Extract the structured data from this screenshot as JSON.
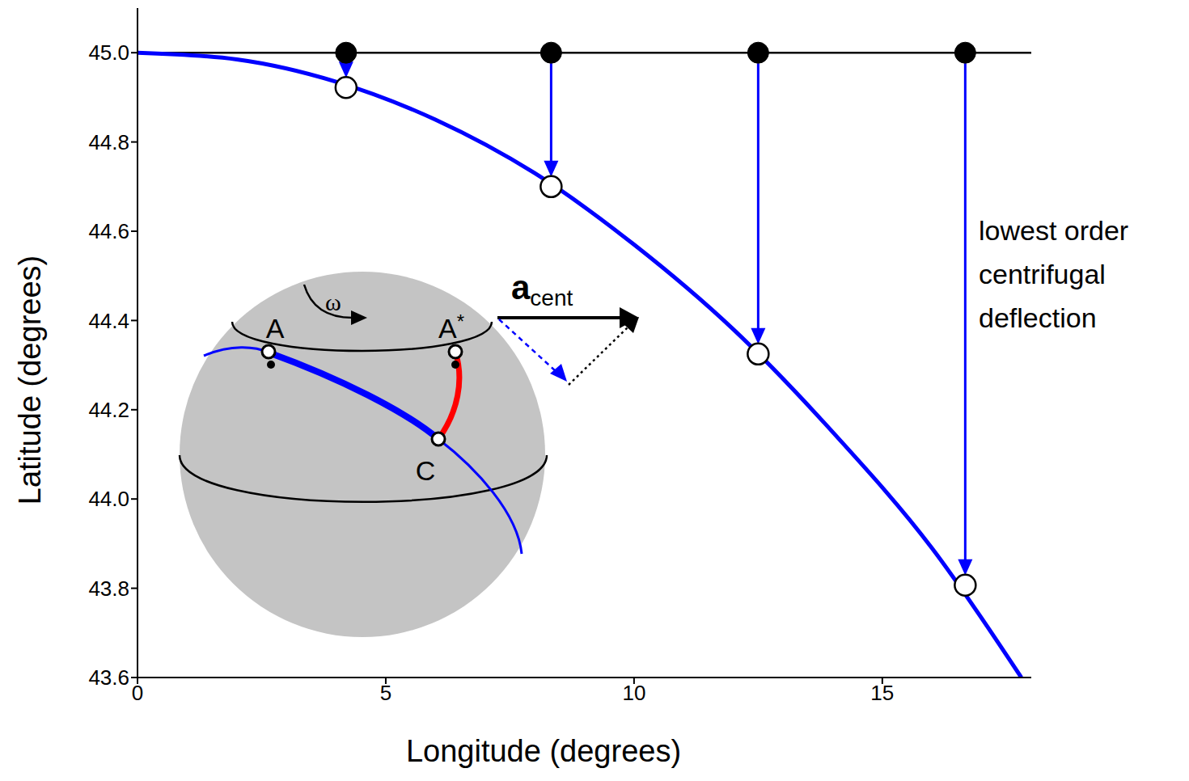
{
  "chart_data": {
    "type": "line",
    "xlabel": "Longitude (degrees)",
    "ylabel": "Latitude (degrees)",
    "xlim": [
      0,
      18
    ],
    "ylim": [
      43.6,
      45.1
    ],
    "xticks": [
      0,
      5,
      10,
      15
    ],
    "yticks": [
      43.6,
      43.8,
      {
        "value": 44,
        "label": "44.0"
      },
      44.2,
      44.4,
      44.6,
      44.8,
      {
        "value": 45,
        "label": "45.0"
      }
    ],
    "grid": false,
    "reference_line": {
      "y": 45,
      "color": "#000000"
    },
    "series": [
      {
        "type": "line",
        "color": "#0000ff",
        "x": [
          0,
          2,
          4,
          6,
          8,
          10,
          12,
          14,
          16,
          17.8
        ],
        "values": [
          45.0,
          44.985,
          44.935,
          44.85,
          44.73,
          44.57,
          44.38,
          44.15,
          43.89,
          43.6
        ]
      },
      {
        "type": "scatter",
        "marker": "filled_circle",
        "color": "#000000",
        "x": [
          4.2,
          8.33,
          12.5,
          16.67
        ],
        "values": [
          45.0,
          45.0,
          45.0,
          45.0
        ]
      },
      {
        "type": "scatter",
        "marker": "open_circle",
        "color": "#000000",
        "x": [
          4.2,
          8.33,
          12.5,
          16.67
        ],
        "values": [
          44.922,
          44.7,
          44.325,
          43.807
        ]
      }
    ],
    "annotation": [
      "lowest order",
      "centrifugal",
      "deflection"
    ],
    "inset": {
      "omega": "ω",
      "points": [
        "A",
        "A*",
        "C"
      ],
      "vector": "a",
      "vector_subscript": "cent"
    }
  }
}
